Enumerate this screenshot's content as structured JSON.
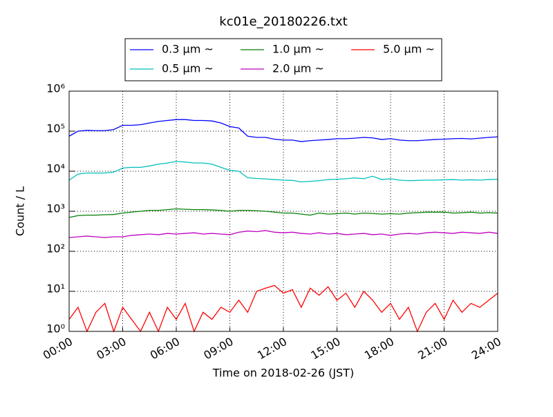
{
  "chart_data": {
    "type": "line",
    "title": "kc01e_20180226.txt",
    "xlabel": "Time on 2018-02-26 (JST)",
    "ylabel": "Count / L",
    "yscale": "log",
    "grid": true,
    "legend_position": "top",
    "xlim": [
      0,
      24
    ],
    "ylim": [
      1,
      1000000
    ],
    "xticks": [
      {
        "value": 0,
        "label": "00:00"
      },
      {
        "value": 3,
        "label": "03:00"
      },
      {
        "value": 6,
        "label": "06:00"
      },
      {
        "value": 9,
        "label": "09:00"
      },
      {
        "value": 12,
        "label": "12:00"
      },
      {
        "value": 15,
        "label": "15:00"
      },
      {
        "value": 18,
        "label": "18:00"
      },
      {
        "value": 21,
        "label": "21:00"
      },
      {
        "value": 24,
        "label": "24:00"
      }
    ],
    "yticks": [
      {
        "value": 1,
        "label": "10⁰"
      },
      {
        "value": 10,
        "label": "10¹"
      },
      {
        "value": 100,
        "label": "10²"
      },
      {
        "value": 1000,
        "label": "10³"
      },
      {
        "value": 10000,
        "label": "10⁴"
      },
      {
        "value": 100000,
        "label": "10⁵"
      },
      {
        "value": 1000000,
        "label": "10⁶"
      }
    ],
    "x": [
      0,
      0.5,
      1,
      1.5,
      2,
      2.5,
      3,
      3.5,
      4,
      4.5,
      5,
      5.5,
      6,
      6.5,
      7,
      7.5,
      8,
      8.5,
      9,
      9.5,
      10,
      10.5,
      11,
      11.5,
      12,
      12.5,
      13,
      13.5,
      14,
      14.5,
      15,
      15.5,
      16,
      16.5,
      17,
      17.5,
      18,
      18.5,
      19,
      19.5,
      20,
      20.5,
      21,
      21.5,
      22,
      22.5,
      23,
      23.5,
      24
    ],
    "series": [
      {
        "name": "0.3 μm ~",
        "color": "#0000ff",
        "values": [
          75000,
          100000,
          105000,
          103000,
          103000,
          110000,
          140000,
          140000,
          145000,
          160000,
          175000,
          185000,
          195000,
          195000,
          185000,
          185000,
          180000,
          160000,
          130000,
          120000,
          75000,
          70000,
          70000,
          63000,
          60000,
          60000,
          55000,
          58000,
          60000,
          62000,
          65000,
          65000,
          67000,
          70000,
          68000,
          62000,
          65000,
          60000,
          58000,
          58000,
          60000,
          62000,
          63000,
          65000,
          66000,
          64000,
          67000,
          70000,
          72000
        ]
      },
      {
        "name": "0.5 μm ~",
        "color": "#00bfbf",
        "values": [
          6000,
          8500,
          9000,
          9000,
          9000,
          9500,
          12000,
          12500,
          12500,
          13500,
          15000,
          16000,
          17500,
          17000,
          16000,
          16000,
          15000,
          12500,
          10500,
          10000,
          6900,
          6600,
          6400,
          6200,
          6000,
          5900,
          5400,
          5600,
          5800,
          6200,
          6300,
          6500,
          6800,
          6500,
          7500,
          6200,
          6500,
          6000,
          5800,
          5900,
          6000,
          6000,
          6100,
          6200,
          6000,
          6100,
          6000,
          6200,
          6300
        ]
      },
      {
        "name": "1.0 μm ~",
        "color": "#008000",
        "values": [
          700,
          780,
          800,
          800,
          820,
          830,
          900,
          950,
          1000,
          1050,
          1050,
          1100,
          1150,
          1120,
          1100,
          1100,
          1080,
          1050,
          1000,
          1050,
          1050,
          1030,
          1000,
          950,
          900,
          900,
          850,
          800,
          900,
          850,
          870,
          900,
          850,
          900,
          880,
          850,
          870,
          850,
          900,
          920,
          950,
          950,
          950,
          900,
          920,
          950,
          900,
          920,
          900
        ]
      },
      {
        "name": "2.0 μm ~",
        "color": "#bf00bf",
        "values": [
          220,
          230,
          240,
          230,
          220,
          230,
          230,
          250,
          260,
          270,
          260,
          280,
          270,
          280,
          290,
          270,
          280,
          270,
          260,
          300,
          320,
          310,
          330,
          300,
          290,
          300,
          280,
          270,
          290,
          270,
          280,
          260,
          270,
          280,
          260,
          270,
          250,
          270,
          280,
          270,
          290,
          300,
          290,
          280,
          300,
          290,
          280,
          300,
          280
        ]
      },
      {
        "name": "5.0 μm ~",
        "color": "#ff0000",
        "values": [
          2,
          4,
          1,
          3,
          5,
          1,
          4,
          2,
          1,
          3,
          1,
          4,
          2,
          5,
          1,
          3,
          2,
          4,
          3,
          6,
          3,
          10,
          12,
          14,
          9,
          11,
          4,
          12,
          8,
          13,
          6,
          9,
          4,
          10,
          6,
          3,
          5,
          2,
          4,
          1,
          3,
          5,
          2,
          6,
          3,
          5,
          4,
          6,
          9
        ]
      }
    ]
  }
}
